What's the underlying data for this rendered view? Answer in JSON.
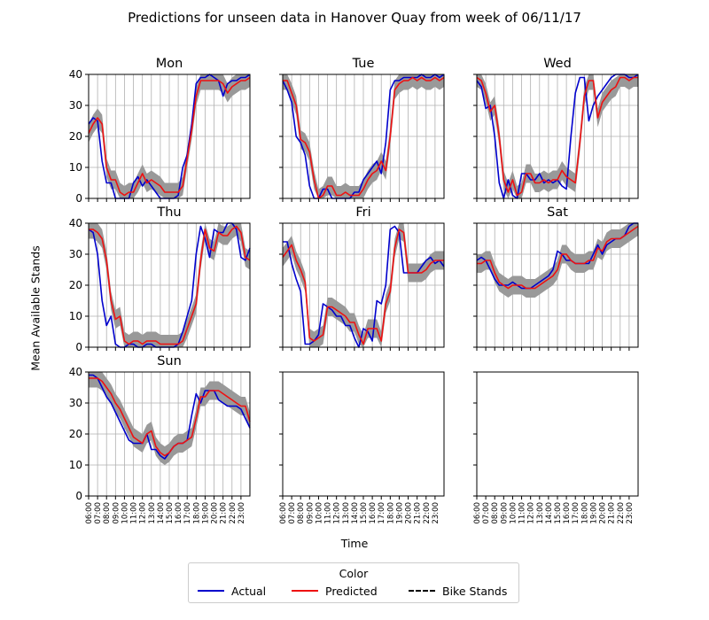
{
  "title": "Predictions for unseen data in Hanover Quay from week of 06/11/17",
  "ylabel": "Mean Available Stands",
  "xlabel": "Time",
  "legend": {
    "title": "Color",
    "items": [
      {
        "label": "Actual",
        "color": "#0000cc",
        "style": "solid"
      },
      {
        "label": "Predicted",
        "color": "#ee1111",
        "style": "solid"
      },
      {
        "label": "Bike Stands",
        "color": "#000000",
        "style": "dashdot"
      }
    ]
  },
  "chart_data": {
    "type": "line",
    "ylim": [
      0,
      40
    ],
    "yticks": [
      0,
      10,
      20,
      30,
      40
    ],
    "xrange": [
      6,
      24
    ],
    "xticks": [
      "06:00",
      "07:00",
      "08:00",
      "09:00",
      "10:00",
      "11:00",
      "12:00",
      "13:00",
      "14:00",
      "15:00",
      "16:00",
      "17:00",
      "18:00",
      "19:00",
      "20:00",
      "21:00",
      "22:00",
      "23:00"
    ],
    "grid": true,
    "band_color": "#999999",
    "panels": [
      {
        "title": "Mon",
        "x": [
          6,
          6.5,
          7,
          7.5,
          8,
          8.5,
          9,
          9.5,
          10,
          10.5,
          11,
          11.5,
          12,
          12.5,
          13,
          13.5,
          14,
          14.5,
          15,
          15.5,
          16,
          16.5,
          17,
          17.5,
          18,
          18.5,
          19,
          19.5,
          20,
          20.5,
          21,
          21.5,
          22,
          22.5,
          23,
          23.5,
          24
        ],
        "actual": [
          24,
          26,
          25,
          12,
          5,
          5,
          0,
          0,
          0,
          0,
          5,
          7,
          4,
          6,
          4,
          2,
          0,
          0,
          0,
          0,
          1,
          10,
          14,
          24,
          37,
          39,
          39,
          40,
          39,
          38,
          33,
          37,
          38,
          38,
          39,
          39,
          40
        ],
        "predicted": [
          21,
          24,
          26,
          24,
          10,
          6,
          6,
          2,
          1,
          2,
          2,
          5,
          8,
          5,
          6,
          5,
          4,
          2,
          2,
          2,
          2,
          4,
          13,
          22,
          33,
          38,
          38,
          38,
          38,
          38,
          37,
          34,
          36,
          37,
          38,
          38,
          39
        ]
      },
      {
        "title": "Tue",
        "x": [
          6,
          6.5,
          7,
          7.5,
          8,
          8.5,
          9,
          9.5,
          10,
          10.5,
          11,
          11.5,
          12,
          12.5,
          13,
          13.5,
          14,
          14.5,
          15,
          15.5,
          16,
          16.5,
          17,
          17.5,
          18,
          18.5,
          19,
          19.5,
          20,
          20.5,
          21,
          21.5,
          22,
          22.5,
          23,
          23.5,
          24
        ],
        "actual": [
          38,
          35,
          31,
          20,
          18,
          14,
          4,
          0,
          0,
          3,
          3,
          0,
          0,
          0,
          0,
          0,
          2,
          2,
          6,
          8,
          10,
          12,
          8,
          18,
          35,
          38,
          38,
          39,
          39,
          39,
          39,
          40,
          39,
          39,
          40,
          39,
          40
        ],
        "predicted": [
          38,
          38,
          34,
          30,
          19,
          18,
          15,
          6,
          0,
          1,
          4,
          4,
          1,
          1,
          2,
          1,
          1,
          1,
          3,
          6,
          8,
          9,
          12,
          9,
          20,
          35,
          37,
          38,
          38,
          39,
          38,
          39,
          38,
          38,
          39,
          38,
          39
        ]
      },
      {
        "title": "Wed",
        "x": [
          6,
          6.5,
          7,
          7.5,
          8,
          8.5,
          9,
          9.5,
          10,
          10.5,
          11,
          11.5,
          12,
          12.5,
          13,
          13.5,
          14,
          14.5,
          15,
          15.5,
          16,
          16.5,
          17,
          17.5,
          18,
          18.5,
          19,
          19.5,
          20,
          20.5,
          21,
          21.5,
          22,
          22.5,
          23,
          23.5,
          24
        ],
        "actual": [
          38,
          36,
          29,
          30,
          20,
          5,
          0,
          6,
          1,
          0,
          8,
          8,
          6,
          6,
          8,
          5,
          6,
          5,
          6,
          4,
          3,
          20,
          34,
          39,
          39,
          25,
          30,
          33,
          35,
          37,
          39,
          40,
          40,
          40,
          39,
          39,
          40
        ],
        "predicted": [
          39,
          38,
          34,
          28,
          30,
          20,
          6,
          2,
          6,
          1,
          2,
          8,
          8,
          5,
          5,
          6,
          5,
          6,
          6,
          9,
          7,
          6,
          5,
          18,
          33,
          38,
          38,
          26,
          31,
          33,
          35,
          36,
          39,
          39,
          38,
          39,
          39
        ]
      },
      {
        "title": "Thu",
        "x": [
          6,
          6.5,
          7,
          7.5,
          8,
          8.5,
          9,
          9.5,
          10,
          10.5,
          11,
          11.5,
          12,
          12.5,
          13,
          13.5,
          14,
          14.5,
          15,
          15.5,
          16,
          16.5,
          17,
          17.5,
          18,
          18.5,
          19,
          19.5,
          20,
          20.5,
          21,
          21.5,
          22,
          22.5,
          23,
          23.5,
          24
        ],
        "actual": [
          38,
          37,
          30,
          15,
          7,
          10,
          1,
          0,
          0,
          1,
          1,
          0,
          0,
          1,
          1,
          0,
          0,
          0,
          0,
          0,
          1,
          5,
          10,
          15,
          30,
          39,
          35,
          29,
          38,
          37,
          37,
          40,
          40,
          38,
          29,
          28,
          32
        ],
        "predicted": [
          38,
          38,
          37,
          35,
          28,
          15,
          9,
          10,
          2,
          1,
          2,
          2,
          1,
          2,
          2,
          2,
          1,
          1,
          1,
          1,
          1,
          2,
          6,
          10,
          14,
          28,
          38,
          32,
          31,
          37,
          36,
          36,
          38,
          39,
          37,
          29,
          28
        ]
      },
      {
        "title": "Fri",
        "x": [
          6,
          6.5,
          7,
          7.5,
          8,
          8.5,
          9,
          9.5,
          10,
          10.5,
          11,
          11.5,
          12,
          12.5,
          13,
          13.5,
          14,
          14.5,
          15,
          15.5,
          16,
          16.5,
          17,
          17.5,
          18,
          18.5,
          19,
          19.5,
          20,
          20.5,
          21,
          21.5,
          22,
          22.5,
          23,
          23.5,
          24
        ],
        "actual": [
          34,
          34,
          27,
          22,
          18,
          1,
          1,
          2,
          4,
          14,
          13,
          12,
          10,
          10,
          7,
          7,
          3,
          0,
          6,
          5,
          2,
          15,
          14,
          20,
          38,
          39,
          37,
          24,
          24,
          24,
          24,
          26,
          28,
          29,
          27,
          28,
          26
        ],
        "predicted": [
          29,
          31,
          33,
          28,
          25,
          21,
          3,
          2,
          3,
          4,
          13,
          13,
          12,
          11,
          10,
          8,
          8,
          4,
          1,
          6,
          6,
          6,
          2,
          14,
          18,
          32,
          38,
          37,
          24,
          24,
          24,
          24,
          25,
          27,
          28,
          28,
          28
        ]
      },
      {
        "title": "Sat",
        "x": [
          6,
          6.5,
          7,
          7.5,
          8,
          8.5,
          9,
          9.5,
          10,
          10.5,
          11,
          11.5,
          12,
          12.5,
          13,
          13.5,
          14,
          14.5,
          15,
          15.5,
          16,
          16.5,
          17,
          17.5,
          18,
          18.5,
          19,
          19.5,
          20,
          20.5,
          21,
          21.5,
          22,
          22.5,
          23,
          23.5,
          24
        ],
        "actual": [
          28,
          29,
          28,
          25,
          22,
          20,
          20,
          20,
          21,
          20,
          19,
          19,
          19,
          20,
          21,
          22,
          23,
          25,
          31,
          30,
          28,
          28,
          27,
          27,
          27,
          27,
          30,
          33,
          30,
          33,
          34,
          35,
          35,
          36,
          39,
          40,
          40
        ],
        "predicted": [
          27,
          27,
          28,
          28,
          24,
          21,
          20,
          19,
          20,
          20,
          20,
          19,
          19,
          19,
          20,
          21,
          22,
          23,
          25,
          30,
          30,
          28,
          27,
          27,
          27,
          28,
          28,
          32,
          31,
          34,
          35,
          35,
          35,
          36,
          37,
          38,
          39
        ]
      },
      {
        "title": "Sun",
        "x": [
          6,
          6.5,
          7,
          7.5,
          8,
          8.5,
          9,
          9.5,
          10,
          10.5,
          11,
          11.5,
          12,
          12.5,
          13,
          13.5,
          14,
          14.5,
          15,
          15.5,
          16,
          16.5,
          17,
          17.5,
          18,
          18.5,
          19,
          19.5,
          20,
          20.5,
          21,
          21.5,
          22,
          22.5,
          23,
          23.5,
          24
        ],
        "actual": [
          39,
          39,
          38,
          35,
          32,
          30,
          27,
          24,
          21,
          18,
          17,
          17,
          17,
          20,
          15,
          15,
          13,
          12,
          14,
          16,
          17,
          17,
          18,
          26,
          33,
          30,
          34,
          34,
          34,
          31,
          30,
          29,
          29,
          29,
          28,
          25,
          22
        ],
        "predicted": [
          38,
          38,
          38,
          37,
          35,
          33,
          30,
          28,
          25,
          22,
          19,
          18,
          17,
          20,
          21,
          16,
          14,
          13,
          14,
          16,
          17,
          17,
          18,
          19,
          25,
          32,
          32,
          34,
          34,
          34,
          33,
          32,
          31,
          30,
          29,
          29,
          24
        ]
      },
      {
        "title": "",
        "x": [],
        "actual": [],
        "predicted": []
      },
      {
        "title": "",
        "x": [],
        "actual": [],
        "predicted": []
      }
    ]
  }
}
